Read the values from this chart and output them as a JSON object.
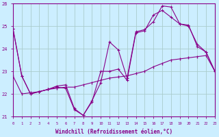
{
  "title": "",
  "xlabel": "Windchill (Refroidissement éolien,°C)",
  "ylabel": "",
  "background_color": "#cceeff",
  "grid_color": "#aacccc",
  "line_color": "#880088",
  "ylim": [
    21,
    26
  ],
  "xlim": [
    0,
    23
  ],
  "yticks": [
    21,
    22,
    23,
    24,
    25,
    26
  ],
  "xticks": [
    0,
    1,
    2,
    3,
    4,
    5,
    6,
    7,
    8,
    9,
    10,
    11,
    12,
    13,
    14,
    15,
    16,
    17,
    18,
    19,
    20,
    21,
    22,
    23
  ],
  "series1_x": [
    0,
    1,
    2,
    3,
    4,
    5,
    6,
    7,
    8,
    9,
    10,
    11,
    12,
    13,
    14,
    15,
    16,
    17,
    18,
    19,
    20,
    21,
    22,
    23
  ],
  "series1_y": [
    24.9,
    22.8,
    22.0,
    22.1,
    22.2,
    22.35,
    22.4,
    21.35,
    21.05,
    21.7,
    22.5,
    24.3,
    23.95,
    22.7,
    24.75,
    24.85,
    25.2,
    25.9,
    25.85,
    25.1,
    25.0,
    24.2,
    23.85,
    23.0
  ],
  "series2_x": [
    0,
    1,
    2,
    3,
    4,
    5,
    6,
    7,
    8,
    9,
    10,
    11,
    12,
    13,
    14,
    15,
    16,
    17,
    18,
    19,
    20,
    21,
    22,
    23
  ],
  "series2_y": [
    22.8,
    22.0,
    22.05,
    22.1,
    22.2,
    22.25,
    22.3,
    22.3,
    22.4,
    22.5,
    22.6,
    22.7,
    22.75,
    22.8,
    22.9,
    23.0,
    23.2,
    23.35,
    23.5,
    23.55,
    23.6,
    23.65,
    23.7,
    23.0
  ],
  "series3_x": [
    0,
    1,
    2,
    3,
    4,
    5,
    6,
    7,
    8,
    9,
    10,
    11,
    12,
    13,
    14,
    15,
    16,
    17,
    18,
    19,
    20,
    21,
    22,
    23
  ],
  "series3_y": [
    24.9,
    22.8,
    22.0,
    22.1,
    22.2,
    22.3,
    22.25,
    21.3,
    21.05,
    21.65,
    23.0,
    23.0,
    23.1,
    22.6,
    24.7,
    24.8,
    25.5,
    25.7,
    25.4,
    25.1,
    25.05,
    24.1,
    23.85,
    23.0
  ]
}
